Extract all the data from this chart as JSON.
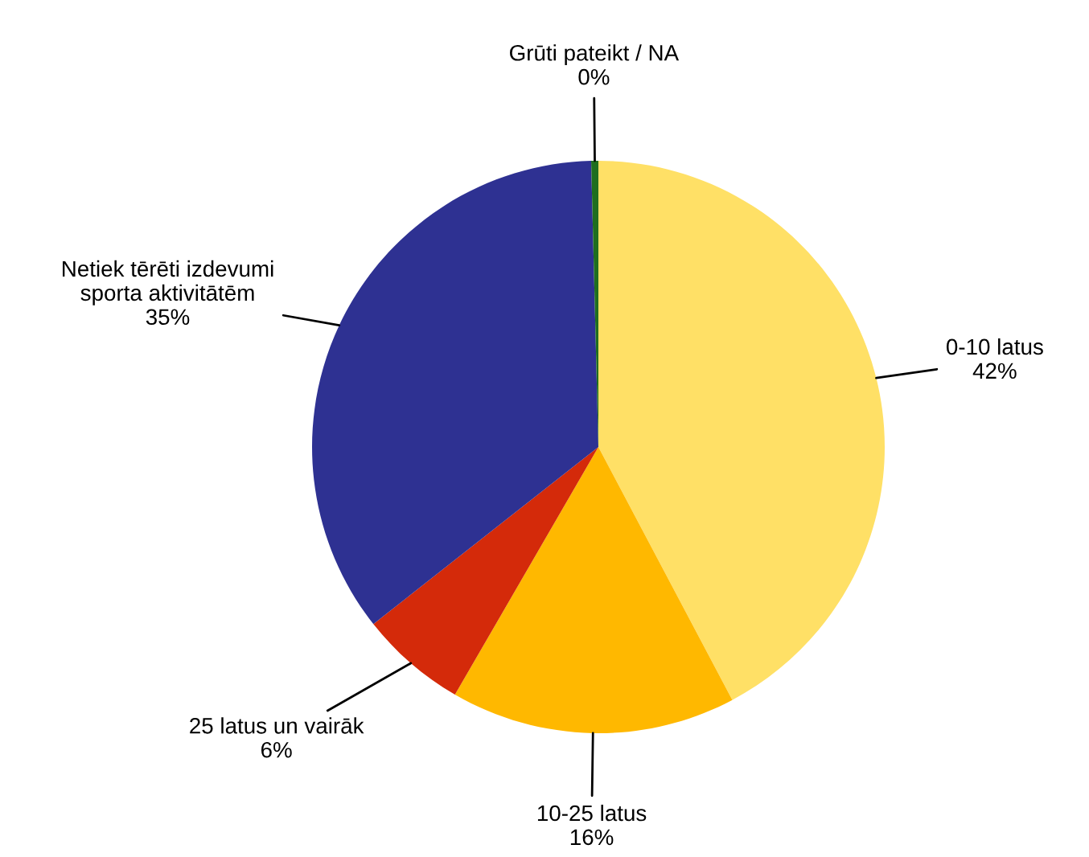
{
  "chart_data": {
    "type": "pie",
    "categories": [
      "0-10 latus",
      "10-25 latus",
      "25 latus un vairāk",
      "Netiek tērēti izdevumi\nsporta aktivitātēm",
      "Grūti pateikt / NA"
    ],
    "values": [
      42,
      16,
      6,
      35,
      0.4
    ],
    "value_labels": [
      "42%",
      "16%",
      "6%",
      "35%",
      "0%"
    ],
    "colors": [
      "#ffe066",
      "#ffb800",
      "#d42a0a",
      "#2e3192",
      "#1f6e1f"
    ]
  }
}
